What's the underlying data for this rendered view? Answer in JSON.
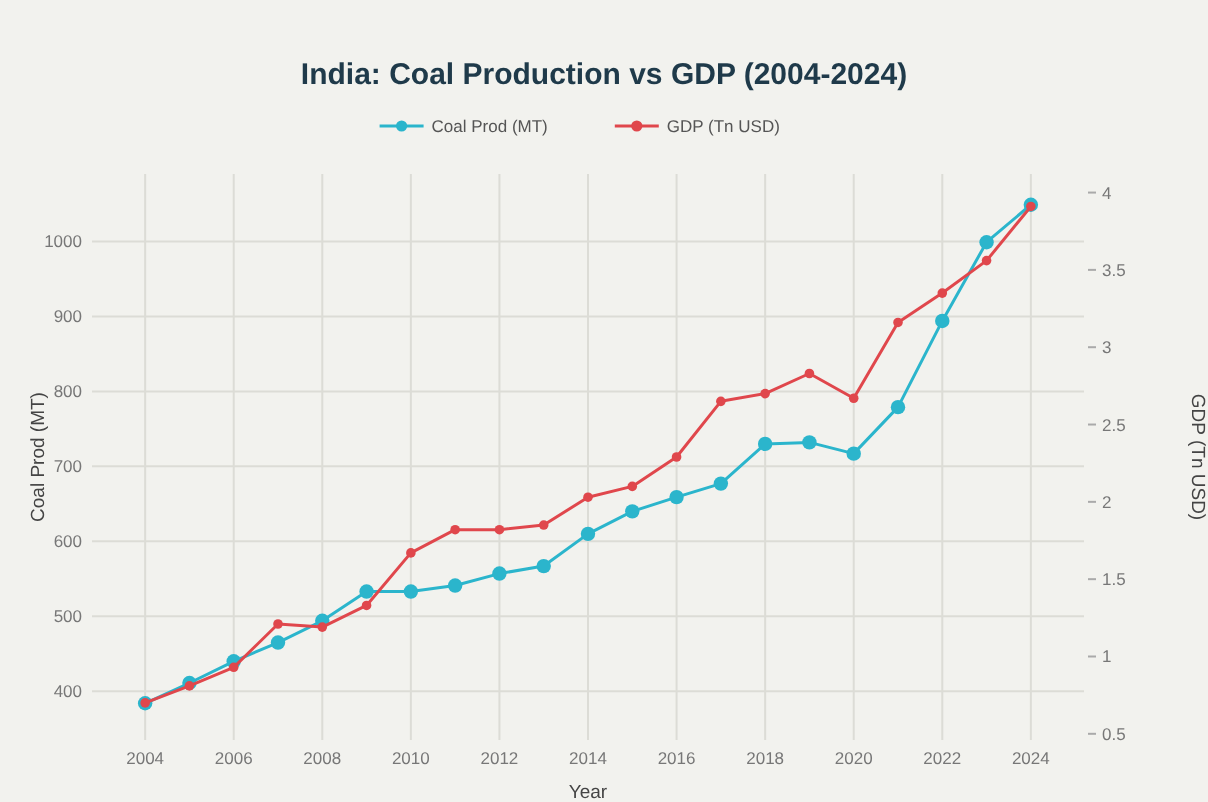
{
  "chart_data": {
    "type": "line",
    "title": "India: Coal Production vs GDP (2004-2024)",
    "xlabel": "Year",
    "ylabel": "Coal Prod (MT)",
    "y2label": "GDP (Tn USD)",
    "x": [
      2004,
      2005,
      2006,
      2007,
      2008,
      2009,
      2010,
      2011,
      2012,
      2013,
      2014,
      2015,
      2016,
      2017,
      2018,
      2019,
      2020,
      2021,
      2022,
      2023,
      2024
    ],
    "series": [
      {
        "name": "Coal Prod (MT)",
        "color": "#2bb5cc",
        "values": [
          384,
          411,
          440,
          465,
          494,
          533,
          533,
          541,
          557,
          567,
          610,
          640,
          659,
          677,
          730,
          732,
          717,
          779,
          894,
          999,
          1049
        ]
      },
      {
        "name": "GDP (Tn USD)",
        "color": "#e0474c",
        "axis": "y2",
        "values": [
          0.7,
          0.81,
          0.93,
          1.21,
          1.19,
          1.33,
          1.67,
          1.82,
          1.82,
          1.85,
          2.03,
          2.1,
          2.29,
          2.65,
          2.7,
          2.83,
          2.67,
          3.16,
          3.35,
          3.56,
          3.91
        ]
      }
    ],
    "xlim": [
      2002.8,
      2025.2
    ],
    "xticks": [
      2004,
      2006,
      2008,
      2010,
      2012,
      2014,
      2016,
      2018,
      2020,
      2022,
      2024
    ],
    "ylim": [
      335,
      1090
    ],
    "yticks": [
      400,
      500,
      600,
      700,
      800,
      900,
      1000
    ],
    "y2lim": [
      0.46,
      4.12
    ],
    "y2ticks": [
      0.5,
      1,
      1.5,
      2,
      2.5,
      3,
      3.5,
      4
    ],
    "grid": true,
    "legend": "top",
    "marker": "circle",
    "line_style": "solid"
  }
}
